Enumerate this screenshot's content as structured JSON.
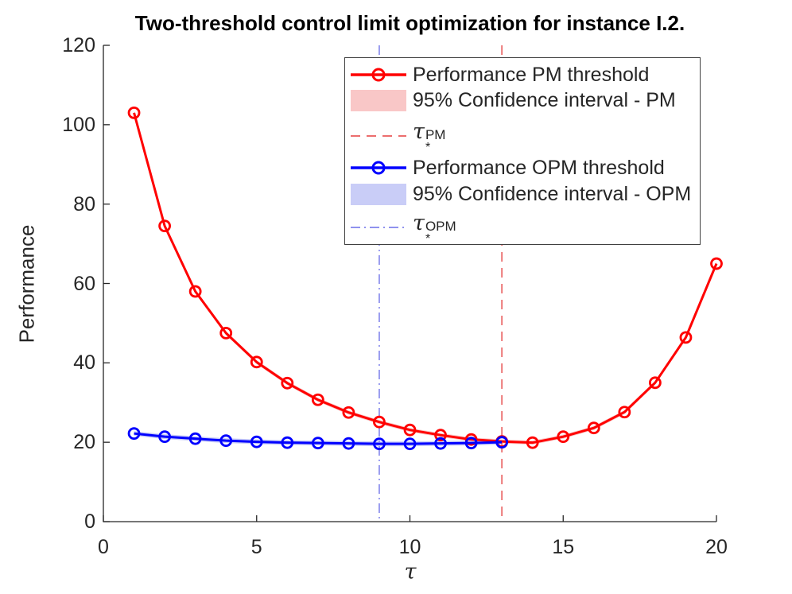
{
  "title": "Two-threshold control limit optimization for instance I.2.",
  "colors": {
    "red": "#ff0000",
    "blue": "#0000ff",
    "red_band": "#f9c7c7",
    "blue_band": "#c9cdf7",
    "red_vline": "#ec6e6e",
    "blue_vline": "#8f92ee",
    "axis": "#262626",
    "text": "#000000"
  },
  "legend": {
    "items": [
      {
        "label": "Performance PM threshold"
      },
      {
        "label": "95% Confidence interval - PM"
      },
      {
        "tau": "τ",
        "sub": "*",
        "sup": "PM"
      },
      {
        "label": "Performance OPM threshold"
      },
      {
        "label": "95% Confidence interval - OPM"
      },
      {
        "tau": "τ",
        "sub": "*",
        "sup": "OPM"
      }
    ]
  },
  "chart_data": {
    "type": "line",
    "title": "Two-threshold control limit optimization for instance I.2.",
    "xlabel": "τ",
    "ylabel": "Performance",
    "xlim": [
      0,
      20
    ],
    "ylim": [
      0,
      120
    ],
    "xticks": [
      0,
      5,
      10,
      15,
      20
    ],
    "yticks": [
      0,
      20,
      40,
      60,
      80,
      100,
      120
    ],
    "grid": false,
    "legend_position": "upper center",
    "series": [
      {
        "name": "Performance PM threshold",
        "color": "#ff0000",
        "band_color": "#f9c7c7",
        "ci_halfwidth": 0.5,
        "x": [
          1,
          2,
          3,
          4,
          5,
          6,
          7,
          8,
          9,
          10,
          11,
          12,
          13,
          14,
          15,
          16,
          17,
          18,
          19,
          20
        ],
        "values": [
          103,
          74.5,
          58,
          47.5,
          40.2,
          34.9,
          30.7,
          27.5,
          25.1,
          23.1,
          21.8,
          20.7,
          20.2,
          19.9,
          21.4,
          23.6,
          27.6,
          35,
          46.4,
          65
        ]
      },
      {
        "name": "Performance OPM threshold",
        "color": "#0000ff",
        "band_color": "#c9cdf7",
        "ci_halfwidth": 0.6,
        "x": [
          1,
          2,
          3,
          4,
          5,
          6,
          7,
          8,
          9,
          10,
          11,
          12,
          13
        ],
        "values": [
          22.2,
          21.4,
          20.9,
          20.4,
          20.1,
          19.9,
          19.8,
          19.7,
          19.6,
          19.6,
          19.7,
          19.8,
          20
        ]
      }
    ],
    "vlines": [
      {
        "name": "tau-star-PM",
        "x": 13,
        "style": "dashed",
        "color": "#ec6e6e"
      },
      {
        "name": "tau-star-OPM",
        "x": 9,
        "style": "dashdot",
        "color": "#8f92ee"
      }
    ]
  }
}
